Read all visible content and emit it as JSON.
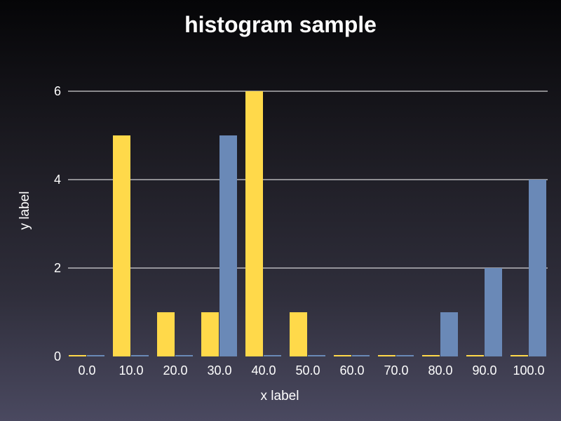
{
  "chart_data": {
    "type": "bar",
    "title": "histogram sample",
    "xlabel": "x label",
    "ylabel": "y label",
    "categories": [
      "0.0",
      "10.0",
      "20.0",
      "30.0",
      "40.0",
      "50.0",
      "60.0",
      "70.0",
      "80.0",
      "90.0",
      "100.0"
    ],
    "series": [
      {
        "color": "#ffd94a",
        "values": [
          0,
          5,
          1,
          1,
          6,
          1,
          0,
          0,
          0,
          0,
          0
        ]
      },
      {
        "color": "#6a89b7",
        "values": [
          0,
          0,
          0,
          5,
          0,
          0,
          0,
          0,
          1,
          2,
          4
        ]
      }
    ],
    "ylim": [
      0,
      6
    ],
    "yticks": [
      "0",
      "2",
      "4",
      "6"
    ],
    "grid": true,
    "legend": "none"
  }
}
